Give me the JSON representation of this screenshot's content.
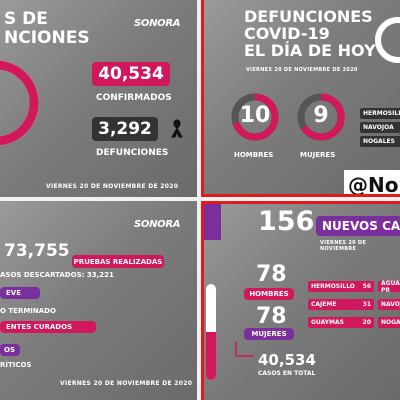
{
  "panel1": {
    "title_line1": "S DE",
    "title_line2": "NCIONES",
    "logo": "SONORA",
    "confirmed_value": "40,534",
    "confirmed_label": "CONFIRMADOS",
    "deaths_value": "3,292",
    "deaths_label": "DEFUNCIONES",
    "date": "VIERNES 20 DE NOVIEMBRE DE 2020",
    "colors": {
      "accent": "#d2185d",
      "purple": "#7a2f9c"
    },
    "icons": {
      "mourning": "black-ribbon-icon"
    }
  },
  "panel2": {
    "title_line1": "DEFUNCIONES",
    "title_line2": "COVID-19",
    "title_line3": "EL DÍA DE HOY",
    "date": "VIERNES 20 DE NOVIEMBRE DE 2020",
    "men_value": "10",
    "men_label": "HOMBRES",
    "women_value": "9",
    "women_label": "MUJERES",
    "cities": [
      "HERMOSILLO",
      "NAVOJOA",
      "NOGALES"
    ],
    "handle": "@No"
  },
  "panel3": {
    "logo": "SONORA",
    "tests_value": "73,755",
    "tests_label": "PRUEBAS REALIZADAS",
    "discarded_text": "ASOS DESCARTADOS: 33,221",
    "row_leve": "EVE",
    "row_terminado": "O TERMINADO",
    "row_curados": "ENTES CURADOS",
    "row_os": "OS",
    "row_criticos": "RÍTICOS",
    "date": "VIERNES 20 DE NOVIEMBRE DE 2020"
  },
  "panel4": {
    "new_cases_value": "156",
    "new_cases_label": "NUEVOS CA",
    "date": "VIERNES 20 DE NOVIEMBRE",
    "men_value": "78",
    "men_label": "HOMBRES",
    "women_value": "78",
    "women_label": "MUJERES",
    "total_value": "40,534",
    "total_label": "CASOS EN TOTAL",
    "city_rows": [
      {
        "name": "HERMOSILLO",
        "value": "56"
      },
      {
        "name": "CAJEME",
        "value": "31"
      },
      {
        "name": "GUAYMAS",
        "value": "20"
      }
    ],
    "right_rows": [
      "AGUA PR",
      "NAVOJOA",
      "NOGA"
    ]
  }
}
